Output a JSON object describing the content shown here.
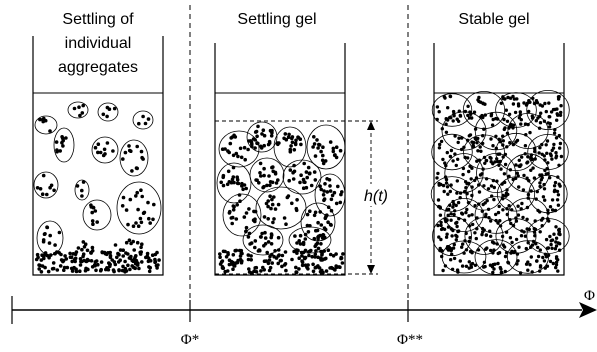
{
  "panels": [
    {
      "title_lines": [
        "Settling of",
        "individual",
        "aggregates"
      ]
    },
    {
      "title_lines": [
        "Settling gel"
      ]
    },
    {
      "title_lines": [
        "Stable gel"
      ]
    }
  ],
  "height_label": "h(t)",
  "axis": {
    "end_label": "Φ",
    "thresholds": [
      {
        "label": "Φ*"
      },
      {
        "label": "Φ**"
      }
    ]
  }
}
